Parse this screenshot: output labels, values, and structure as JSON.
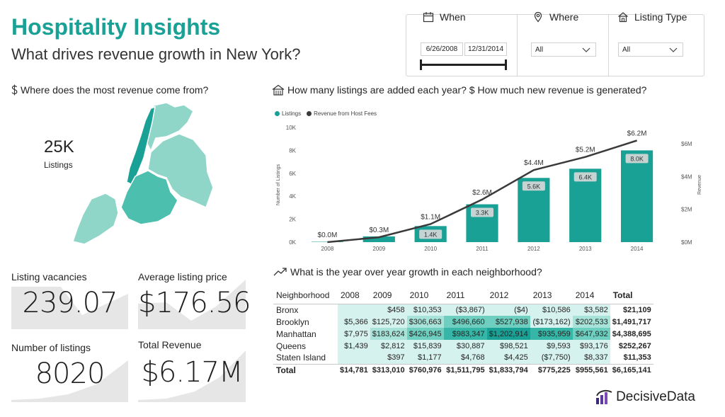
{
  "header": {
    "title": "Hospitality Insights",
    "subtitle": "What drives revenue growth in New York?"
  },
  "filters": {
    "when": {
      "label": "When",
      "start": "6/26/2008",
      "end": "12/31/2014"
    },
    "where": {
      "label": "Where",
      "selected": "All"
    },
    "listing_type": {
      "label": "Listing Type",
      "selected": "All"
    }
  },
  "map_section": {
    "title": "Where does the most revenue come from?",
    "kpi_value": "25K",
    "kpi_label": "Listings"
  },
  "cards": {
    "vacancies": {
      "label": "Listing vacancies",
      "value": "239.07"
    },
    "avg_price": {
      "label": "Average listing price",
      "value": "$176.56"
    },
    "num_listings": {
      "label": "Number of listings",
      "value": "8020"
    },
    "total_revenue": {
      "label": "Total Revenue",
      "value": "$6.17M"
    }
  },
  "chart_section": {
    "title": "How many listings are added each year? $ How much new revenue is generated?"
  },
  "chart_data": {
    "type": "bar",
    "categories": [
      "2008",
      "2009",
      "2010",
      "2011",
      "2012",
      "2013",
      "2014"
    ],
    "series": [
      {
        "name": "Listings",
        "type": "bar",
        "axis": "left",
        "values": [
          30,
          500,
          1400,
          3300,
          5600,
          6400,
          8000
        ],
        "labels": [
          "",
          "",
          "1.4K",
          "3.3K",
          "5.6K",
          "6.4K",
          "8.0K"
        ]
      },
      {
        "name": "Revenue from Host Fees",
        "type": "line",
        "axis": "right",
        "values": [
          0.0,
          0.3,
          1.1,
          2.6,
          4.4,
          5.2,
          6.2
        ],
        "labels": [
          "$0.0M",
          "$0.3M",
          "$1.1M",
          "$2.6M",
          "$4.4M",
          "$5.2M",
          "$6.2M"
        ]
      }
    ],
    "ylabel": "Number of Listings",
    "y2label": "Revenue",
    "ylim": [
      0,
      10000
    ],
    "yticks": [
      "0K",
      "2K",
      "4K",
      "6K",
      "8K",
      "10K"
    ],
    "y2lim": [
      0,
      7
    ],
    "y2ticks": [
      "$0M",
      "$2M",
      "$4M",
      "$6M"
    ],
    "legend": "top-left",
    "colors": {
      "bar": "#1aa195",
      "line": "#3a3a3a"
    }
  },
  "table_section": {
    "title": "What is the year over year growth in each neighborhood?",
    "headers": [
      "Neighborhood",
      "2008",
      "2009",
      "2010",
      "2011",
      "2012",
      "2013",
      "2014",
      "Total"
    ],
    "rows": [
      {
        "name": "Bronx",
        "cells": [
          "",
          "$458",
          "$10,353",
          "($3,867)",
          "($4)",
          "$10,586",
          "$3,582"
        ],
        "total": "$21,109",
        "shade": [
          1,
          1,
          1,
          1,
          1,
          1,
          1
        ]
      },
      {
        "name": "Brooklyn",
        "cells": [
          "$5,366",
          "$125,720",
          "$306,663",
          "$496,660",
          "$527,938",
          "($173,162)",
          "$202,533"
        ],
        "total": "$1,491,717",
        "shade": [
          1,
          1,
          2,
          3,
          3,
          1,
          2
        ]
      },
      {
        "name": "Manhattan",
        "cells": [
          "$7,975",
          "$183,624",
          "$426,945",
          "$983,347",
          "$1,202,914",
          "$935,959",
          "$647,932"
        ],
        "total": "$4,388,695",
        "shade": [
          1,
          2,
          3,
          4,
          5,
          4,
          3
        ]
      },
      {
        "name": "Queens",
        "cells": [
          "$1,439",
          "$2,812",
          "$15,839",
          "$30,887",
          "$98,521",
          "$9,593",
          "$93,176"
        ],
        "total": "$252,267",
        "shade": [
          1,
          1,
          1,
          1,
          1,
          1,
          1
        ]
      },
      {
        "name": "Staten Island",
        "cells": [
          "",
          "$397",
          "$1,177",
          "$4,768",
          "$4,425",
          "($7,750)",
          "$8,337"
        ],
        "total": "$11,353",
        "shade": [
          1,
          1,
          1,
          1,
          1,
          1,
          1
        ]
      }
    ],
    "total_row": {
      "name": "Total",
      "cells": [
        "$14,781",
        "$313,010",
        "$760,976",
        "$1,511,795",
        "$1,833,794",
        "$775,225",
        "$955,561"
      ],
      "total": "$6,165,141"
    }
  },
  "brand": {
    "name": "DecisiveData"
  },
  "colors": {
    "accent": "#1aa195",
    "map_light": "#8fd6c8",
    "map_mid": "#4dbfae",
    "map_dark": "#1aa195",
    "spark": "#e6e6e6"
  }
}
